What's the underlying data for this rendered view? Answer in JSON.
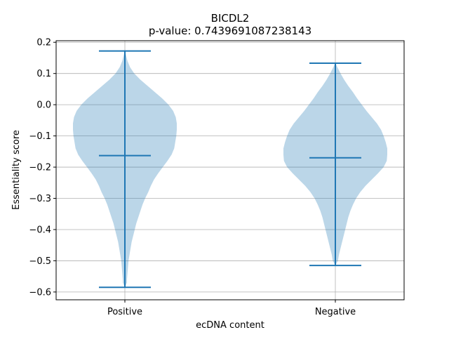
{
  "chart_data": {
    "type": "violin",
    "title": "BICDL2",
    "subtitle": "p-value: 0.7439691087238143",
    "xlabel": "ecDNA content",
    "ylabel": "Essentiality score",
    "categories": [
      "Positive",
      "Negative"
    ],
    "ylim": [
      -0.625,
      0.205
    ],
    "yticks": [
      0.2,
      0.1,
      0.0,
      -0.1,
      -0.2,
      -0.3,
      -0.4,
      -0.5,
      -0.6
    ],
    "ytick_labels": [
      "0.2",
      "0.1",
      "0.0",
      "−0.1",
      "−0.2",
      "−0.3",
      "−0.4",
      "−0.5",
      "−0.6"
    ],
    "grid": true,
    "violins": [
      {
        "category": "Positive",
        "min": -0.585,
        "median": -0.163,
        "max": 0.172,
        "density": [
          [
            0.172,
            0.0
          ],
          [
            0.16,
            0.02
          ],
          [
            0.14,
            0.05
          ],
          [
            0.12,
            0.1
          ],
          [
            0.1,
            0.18
          ],
          [
            0.08,
            0.3
          ],
          [
            0.06,
            0.44
          ],
          [
            0.04,
            0.58
          ],
          [
            0.02,
            0.72
          ],
          [
            0.0,
            0.84
          ],
          [
            -0.02,
            0.93
          ],
          [
            -0.04,
            0.98
          ],
          [
            -0.06,
            1.0
          ],
          [
            -0.08,
            1.0
          ],
          [
            -0.1,
            0.99
          ],
          [
            -0.12,
            0.97
          ],
          [
            -0.14,
            0.95
          ],
          [
            -0.16,
            0.9
          ],
          [
            -0.18,
            0.82
          ],
          [
            -0.2,
            0.73
          ],
          [
            -0.22,
            0.64
          ],
          [
            -0.24,
            0.56
          ],
          [
            -0.26,
            0.5
          ],
          [
            -0.28,
            0.45
          ],
          [
            -0.3,
            0.39
          ],
          [
            -0.32,
            0.34
          ],
          [
            -0.34,
            0.3
          ],
          [
            -0.36,
            0.26
          ],
          [
            -0.38,
            0.22
          ],
          [
            -0.4,
            0.19
          ],
          [
            -0.42,
            0.16
          ],
          [
            -0.44,
            0.13
          ],
          [
            -0.46,
            0.11
          ],
          [
            -0.48,
            0.09
          ],
          [
            -0.5,
            0.07
          ],
          [
            -0.52,
            0.06
          ],
          [
            -0.54,
            0.05
          ],
          [
            -0.56,
            0.04
          ],
          [
            -0.57,
            0.04
          ],
          [
            -0.585,
            0.0
          ]
        ]
      },
      {
        "category": "Negative",
        "min": -0.515,
        "median": -0.17,
        "max": 0.133,
        "density": [
          [
            0.133,
            0.0
          ],
          [
            0.12,
            0.04
          ],
          [
            0.1,
            0.1
          ],
          [
            0.08,
            0.17
          ],
          [
            0.06,
            0.25
          ],
          [
            0.04,
            0.34
          ],
          [
            0.02,
            0.42
          ],
          [
            0.0,
            0.51
          ],
          [
            -0.02,
            0.6
          ],
          [
            -0.04,
            0.7
          ],
          [
            -0.06,
            0.8
          ],
          [
            -0.08,
            0.88
          ],
          [
            -0.1,
            0.93
          ],
          [
            -0.12,
            0.97
          ],
          [
            -0.14,
            1.0
          ],
          [
            -0.16,
            1.0
          ],
          [
            -0.18,
            0.99
          ],
          [
            -0.2,
            0.93
          ],
          [
            -0.22,
            0.82
          ],
          [
            -0.24,
            0.7
          ],
          [
            -0.26,
            0.58
          ],
          [
            -0.28,
            0.48
          ],
          [
            -0.3,
            0.4
          ],
          [
            -0.32,
            0.34
          ],
          [
            -0.34,
            0.29
          ],
          [
            -0.36,
            0.25
          ],
          [
            -0.38,
            0.22
          ],
          [
            -0.4,
            0.19
          ],
          [
            -0.42,
            0.16
          ],
          [
            -0.44,
            0.13
          ],
          [
            -0.46,
            0.1
          ],
          [
            -0.48,
            0.07
          ],
          [
            -0.5,
            0.05
          ],
          [
            -0.515,
            0.0
          ]
        ]
      }
    ],
    "colors": {
      "fill": "#1f77b4",
      "line": "#1f77b4",
      "grid": "#b0b0b0",
      "axis": "#000000"
    }
  }
}
